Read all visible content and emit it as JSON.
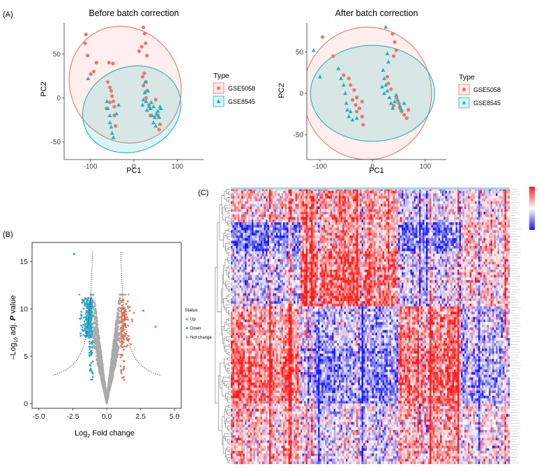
{
  "panels": {
    "a_label": "(A)",
    "b_label": "(B)",
    "c_label": "(C)"
  },
  "chart_data": [
    {
      "type": "scatter",
      "title": "Before batch correction",
      "xlabel": "PC1",
      "ylabel": "PC2",
      "xticks": [
        "-100",
        "0",
        "100"
      ],
      "yticks": [
        "50",
        "0",
        "-50"
      ],
      "xlim": [
        -160,
        160
      ],
      "ylim": [
        -70,
        85
      ],
      "legend_title": "Type",
      "legend": [
        "GSE5058",
        "GSE8545"
      ],
      "colors": [
        "#e8776d",
        "#1fb5b8"
      ],
      "series": [
        {
          "name": "GSE5058",
          "points": [
            [
              -110,
              72
            ],
            [
              -112,
              62
            ],
            [
              -106,
              48
            ],
            [
              -99,
              27
            ],
            [
              -92,
              30
            ],
            [
              -86,
              40
            ],
            [
              -57,
              40
            ],
            [
              -48,
              39
            ],
            [
              -60,
              18
            ],
            [
              -55,
              12
            ],
            [
              -52,
              8
            ],
            [
              -50,
              2
            ],
            [
              -47,
              -4
            ],
            [
              -45,
              -10
            ],
            [
              -55,
              -5
            ],
            [
              -63,
              -12
            ],
            [
              -45,
              -20
            ],
            [
              -42,
              -32
            ],
            [
              12,
              53
            ],
            [
              18,
              58
            ],
            [
              22,
              80
            ],
            [
              25,
              73
            ],
            [
              27,
              62
            ],
            [
              30,
              48
            ],
            [
              24,
              28
            ],
            [
              20,
              24
            ],
            [
              28,
              18
            ],
            [
              22,
              14
            ],
            [
              30,
              8
            ],
            [
              28,
              0
            ],
            [
              35,
              -8
            ],
            [
              50,
              -2
            ],
            [
              55,
              -20
            ],
            [
              60,
              -30
            ],
            [
              58,
              -36
            ],
            [
              38,
              -20
            ]
          ]
        },
        {
          "name": "GSE8545",
          "points": [
            [
              -105,
              22
            ],
            [
              -62,
              -4
            ],
            [
              -60,
              -12
            ],
            [
              -55,
              -20
            ],
            [
              -55,
              -28
            ],
            [
              -52,
              -33
            ],
            [
              -50,
              -40
            ],
            [
              -47,
              -45
            ],
            [
              -40,
              -18
            ],
            [
              -35,
              -8
            ],
            [
              20,
              -8
            ],
            [
              22,
              -2
            ],
            [
              25,
              6
            ],
            [
              28,
              -4
            ],
            [
              30,
              -14
            ],
            [
              35,
              -10
            ],
            [
              40,
              -5
            ],
            [
              45,
              -10
            ],
            [
              42,
              -20
            ],
            [
              48,
              -22
            ],
            [
              52,
              -18
            ],
            [
              55,
              -15
            ],
            [
              58,
              -22
            ],
            [
              60,
              -10
            ],
            [
              62,
              -12
            ],
            [
              50,
              -32
            ],
            [
              45,
              -28
            ],
            [
              38,
              -12
            ],
            [
              32,
              8
            ],
            [
              26,
              18
            ]
          ]
        }
      ],
      "ellipses": [
        {
          "name": "GSE5058",
          "cx": -20,
          "cy": 15,
          "rx": 125,
          "ry": 68,
          "angle_deg": 32
        },
        {
          "name": "GSE8545",
          "cx": -5,
          "cy": -13,
          "rx": 115,
          "ry": 48,
          "angle_deg": 22
        }
      ]
    },
    {
      "type": "scatter",
      "title": "After batch correction",
      "xlabel": "PC1",
      "ylabel": "PC2",
      "xticks": [
        "-100",
        "0",
        "100"
      ],
      "yticks": [
        "50",
        "0",
        "-50"
      ],
      "xlim": [
        -125,
        140
      ],
      "ylim": [
        -80,
        85
      ],
      "legend_title": "Type",
      "legend": [
        "GSE5058",
        "GSE8545"
      ],
      "colors": [
        "#e8776d",
        "#1fb5b8"
      ],
      "series": [
        {
          "name": "GSE5058",
          "points": [
            [
              -95,
              68
            ],
            [
              -75,
              45
            ],
            [
              -55,
              22
            ],
            [
              -45,
              18
            ],
            [
              -42,
              10
            ],
            [
              -35,
              4
            ],
            [
              -30,
              -5
            ],
            [
              -38,
              -8
            ],
            [
              -32,
              -14
            ],
            [
              -25,
              -18
            ],
            [
              -20,
              -28
            ],
            [
              -18,
              -38
            ],
            [
              -30,
              -22
            ],
            [
              -20,
              -10
            ],
            [
              38,
              72
            ],
            [
              42,
              62
            ],
            [
              45,
              52
            ],
            [
              40,
              45
            ],
            [
              28,
              20
            ],
            [
              30,
              12
            ],
            [
              35,
              5
            ],
            [
              45,
              -5
            ],
            [
              50,
              -12
            ],
            [
              52,
              -18
            ],
            [
              55,
              -22
            ],
            [
              60,
              -26
            ],
            [
              65,
              -30
            ],
            [
              68,
              -20
            ],
            [
              40,
              -15
            ]
          ]
        },
        {
          "name": "GSE8545",
          "points": [
            [
              -112,
              52
            ],
            [
              -100,
              20
            ],
            [
              -65,
              30
            ],
            [
              -60,
              18
            ],
            [
              -55,
              10
            ],
            [
              -52,
              0
            ],
            [
              -50,
              -12
            ],
            [
              -48,
              -20
            ],
            [
              -45,
              -28
            ],
            [
              -42,
              -22
            ],
            [
              -38,
              -32
            ],
            [
              -30,
              -30
            ],
            [
              25,
              80
            ],
            [
              28,
              48
            ],
            [
              30,
              38
            ],
            [
              20,
              28
            ],
            [
              22,
              18
            ],
            [
              25,
              10
            ],
            [
              28,
              3
            ],
            [
              32,
              -5
            ],
            [
              35,
              -12
            ],
            [
              38,
              -18
            ],
            [
              42,
              -10
            ],
            [
              45,
              -2
            ],
            [
              48,
              -8
            ],
            [
              52,
              -15
            ],
            [
              55,
              -20
            ],
            [
              60,
              -12
            ],
            [
              22,
              0
            ],
            [
              18,
              8
            ]
          ]
        }
      ],
      "ellipses": [
        {
          "name": "GSE5058",
          "cx": -10,
          "cy": 0,
          "rx": 122,
          "ry": 80,
          "angle_deg": 0
        },
        {
          "name": "GSE8545",
          "cx": 0,
          "cy": 0,
          "rx": 118,
          "ry": 58,
          "angle_deg": 0
        }
      ]
    },
    {
      "type": "scatter",
      "xlabel_prefix": "Log",
      "xlabel_sub": "2",
      "xlabel_suffix": " Fold change",
      "ylabel_prefix": "–Log",
      "ylabel_sub": "10",
      "ylabel_mid": " adj. ",
      "ylabel_italic": "P",
      "ylabel_suffix": " value",
      "xticks": [
        "-5.0",
        "-2.5",
        "0.0",
        "2.5",
        "5.0"
      ],
      "yticks": [
        "0",
        "5",
        "10",
        "15"
      ],
      "xlim": [
        -5.5,
        5.5
      ],
      "ylim": [
        -0.5,
        17
      ],
      "legend_title": "Status",
      "legend": [
        "Up",
        "Down",
        "Not change"
      ],
      "colors": [
        "#e8775d",
        "#2fa8c7",
        "#aaaaaa"
      ],
      "threshold_line": {
        "fc": 1.0,
        "style": "dotted"
      },
      "annotated_points": [
        {
          "status": "Down",
          "x": -2.4,
          "y": 15.8
        },
        {
          "status": "Up",
          "x": 2.7,
          "y": 9.8
        },
        {
          "status": "Up",
          "x": 3.6,
          "y": 8.1
        }
      ]
    },
    {
      "type": "heatmap",
      "color_scale": [
        "#1a1aff",
        "#ffffff",
        "#ff1a1a"
      ],
      "value_range": [
        -3,
        3
      ],
      "n_rows": 105,
      "n_cols": 160
    }
  ]
}
